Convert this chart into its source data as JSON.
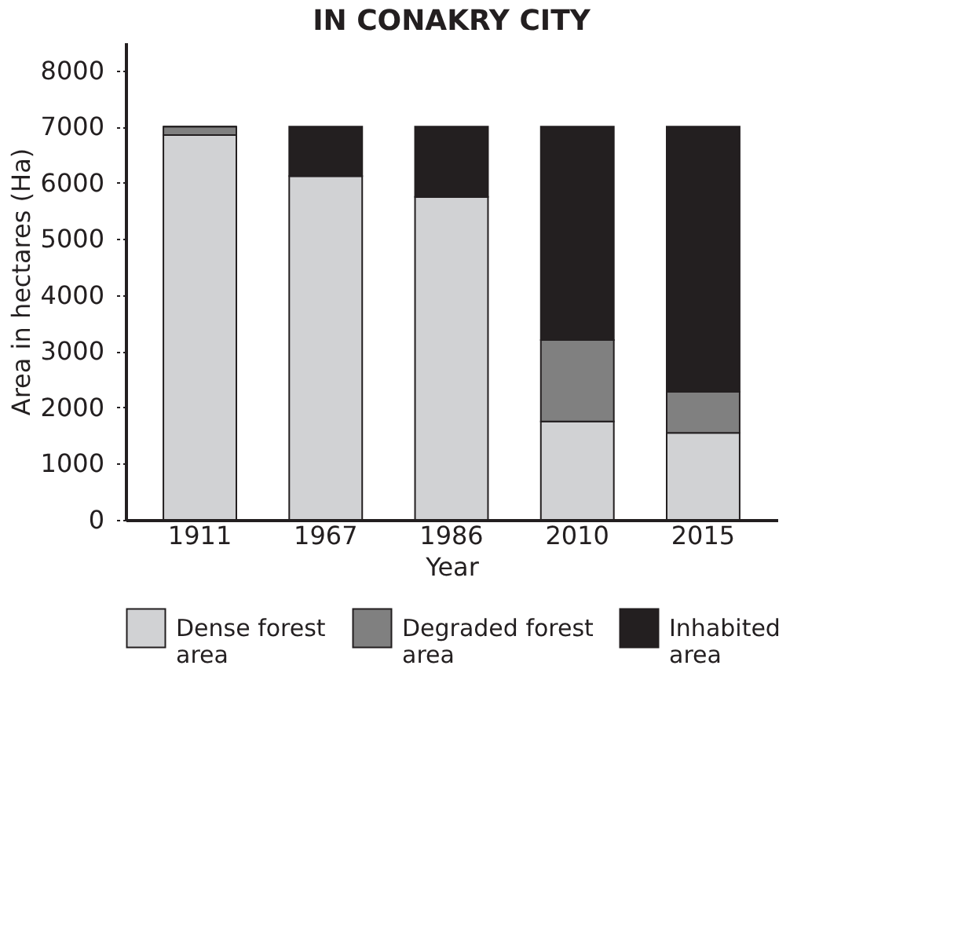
{
  "chart_data": {
    "type": "bar",
    "title": "IN CONAKRY CITY",
    "xlabel": "Year",
    "ylabel": "Area in hectares (Ha)",
    "categories": [
      "1911",
      "1967",
      "1986",
      "2010",
      "2015"
    ],
    "stacked": true,
    "series": [
      {
        "name": "Dense forest area",
        "color": "#d1d2d4",
        "values": [
          6850,
          6120,
          5750,
          1750,
          1550
        ]
      },
      {
        "name": "Degraded forest area",
        "color": "#808080",
        "values": [
          150,
          0,
          0,
          1450,
          730
        ]
      },
      {
        "name": "Inhabited area",
        "color": "#231f20",
        "values": [
          0,
          880,
          1250,
          3800,
          4720
        ]
      }
    ],
    "ylim": [
      0,
      8500
    ],
    "yticks": [
      0,
      1000,
      2000,
      3000,
      4000,
      5000,
      6000,
      7000,
      8000
    ],
    "grid": false,
    "legend": "bottom"
  }
}
